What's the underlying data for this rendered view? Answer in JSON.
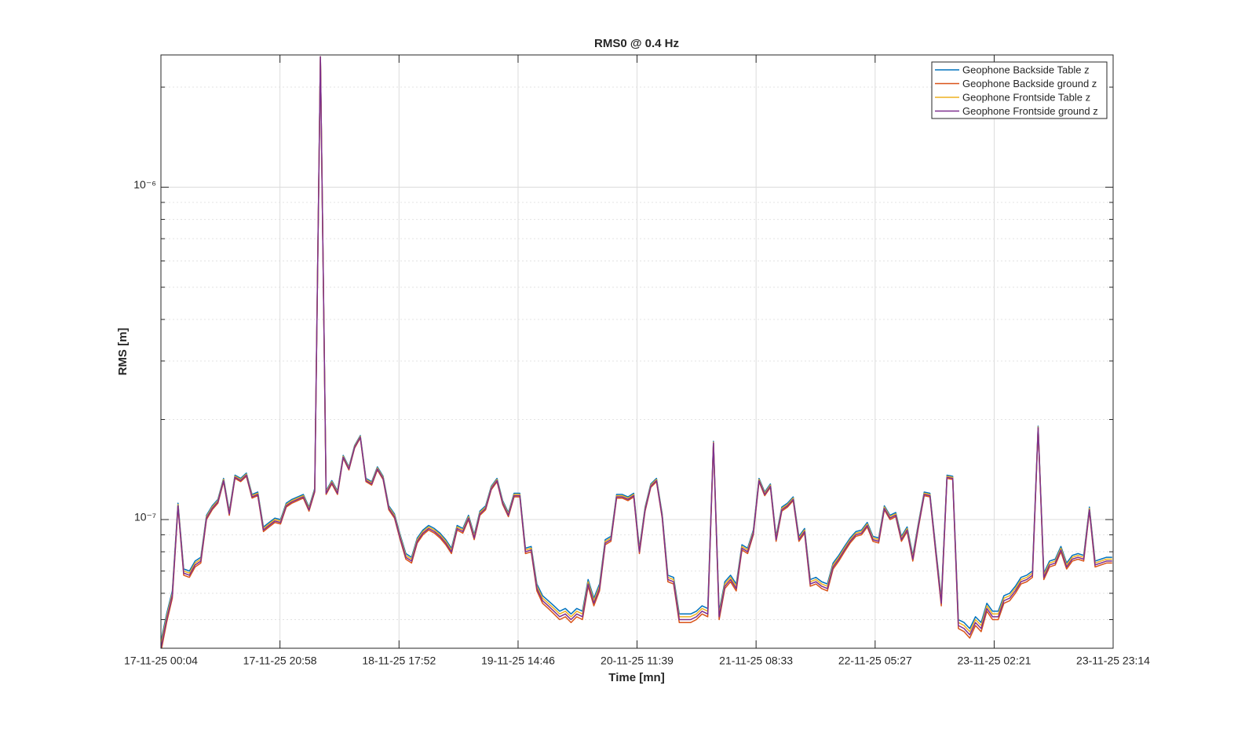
{
  "chart_data": {
    "type": "line",
    "title": "RMS0 @ 0.4 Hz",
    "xlabel": "Time [mn]",
    "ylabel": "RMS [m]",
    "log_y": true,
    "grid": true,
    "legend_position": "top-right",
    "xlim": [
      "17-11-25 00:04",
      "23-11-25 23:14"
    ],
    "xticks": [
      "17-11-25 00:04",
      "17-11-25 20:58",
      "18-11-25 17:52",
      "19-11-25 14:46",
      "20-11-25 11:39",
      "21-11-25 08:33",
      "22-11-25 05:27",
      "23-11-25 02:21",
      "23-11-25 23:14"
    ],
    "ylim": [
      4.1e-08,
      2.5e-06
    ],
    "yticks": [
      {
        "value": 1e-07,
        "label": "10⁻⁷"
      },
      {
        "value": 1e-06,
        "label": "10⁻⁶"
      }
    ],
    "yminorticks": [
      5e-08,
      6e-08,
      7e-08,
      8e-08,
      9e-08,
      2e-07,
      3e-07,
      4e-07,
      5e-07,
      6e-07,
      7e-07,
      8e-07,
      9e-07,
      2e-06
    ],
    "x": [
      "17-11-25 00:04",
      "17-11-25 01:04",
      "17-11-25 02:04",
      "17-11-25 03:04",
      "17-11-25 04:04",
      "17-11-25 05:04",
      "17-11-25 06:04",
      "17-11-25 07:04",
      "17-11-25 08:04",
      "17-11-25 09:04",
      "17-11-25 10:04",
      "17-11-25 11:04",
      "17-11-25 12:04",
      "17-11-25 13:04",
      "17-11-25 14:04",
      "17-11-25 15:04",
      "17-11-25 16:04",
      "17-11-25 17:04",
      "17-11-25 18:04",
      "17-11-25 19:04",
      "17-11-25 20:04",
      "17-11-25 21:04",
      "17-11-25 22:04",
      "17-11-25 23:04",
      "18-11-25 00:04",
      "18-11-25 01:04",
      "18-11-25 02:04",
      "18-11-25 03:04",
      "18-11-25 04:04",
      "18-11-25 05:04",
      "18-11-25 06:04",
      "18-11-25 07:04",
      "18-11-25 08:04",
      "18-11-25 09:04",
      "18-11-25 10:04",
      "18-11-25 11:04",
      "18-11-25 12:04",
      "18-11-25 13:04",
      "18-11-25 14:04",
      "18-11-25 15:04",
      "18-11-25 16:04",
      "18-11-25 17:04",
      "18-11-25 18:04",
      "18-11-25 19:04",
      "18-11-25 20:04",
      "18-11-25 21:04",
      "18-11-25 22:04",
      "18-11-25 23:04",
      "19-11-25 00:04",
      "19-11-25 01:04",
      "19-11-25 02:04",
      "19-11-25 03:04",
      "19-11-25 04:04",
      "19-11-25 05:04",
      "19-11-25 06:04",
      "19-11-25 07:04",
      "19-11-25 08:04",
      "19-11-25 09:04",
      "19-11-25 10:04",
      "19-11-25 11:04",
      "19-11-25 12:04",
      "19-11-25 13:04",
      "19-11-25 14:04",
      "19-11-25 15:04",
      "19-11-25 16:04",
      "19-11-25 17:04",
      "19-11-25 18:04",
      "19-11-25 19:04",
      "19-11-25 20:04",
      "19-11-25 21:04",
      "19-11-25 22:04",
      "19-11-25 23:04",
      "20-11-25 00:04",
      "20-11-25 01:04",
      "20-11-25 02:04",
      "20-11-25 03:04",
      "20-11-25 04:04",
      "20-11-25 05:04",
      "20-11-25 06:04",
      "20-11-25 07:04",
      "20-11-25 08:04",
      "20-11-25 09:04",
      "20-11-25 10:04",
      "20-11-25 11:04",
      "20-11-25 12:04",
      "20-11-25 13:04",
      "20-11-25 14:04",
      "20-11-25 15:04",
      "20-11-25 16:04",
      "20-11-25 17:04",
      "20-11-25 18:04",
      "20-11-25 19:04",
      "20-11-25 20:04",
      "20-11-25 21:04",
      "20-11-25 22:04",
      "20-11-25 23:04",
      "21-11-25 00:04",
      "21-11-25 01:04",
      "21-11-25 02:04",
      "21-11-25 03:04",
      "21-11-25 04:04",
      "21-11-25 05:04",
      "21-11-25 06:04",
      "21-11-25 07:04",
      "21-11-25 08:04",
      "21-11-25 09:04",
      "21-11-25 10:04",
      "21-11-25 11:04",
      "21-11-25 12:04",
      "21-11-25 13:04",
      "21-11-25 14:04",
      "21-11-25 15:04",
      "21-11-25 16:04",
      "21-11-25 17:04",
      "21-11-25 18:04",
      "21-11-25 19:04",
      "21-11-25 20:04",
      "21-11-25 21:04",
      "21-11-25 22:04",
      "21-11-25 23:04",
      "22-11-25 00:04",
      "22-11-25 01:04",
      "22-11-25 02:04",
      "22-11-25 03:04",
      "22-11-25 04:04",
      "22-11-25 05:04",
      "22-11-25 06:04",
      "22-11-25 07:04",
      "22-11-25 08:04",
      "22-11-25 09:04",
      "22-11-25 10:04",
      "22-11-25 11:04",
      "22-11-25 12:04",
      "22-11-25 13:04",
      "22-11-25 14:04",
      "22-11-25 15:04",
      "22-11-25 16:04",
      "22-11-25 17:04",
      "22-11-25 18:04",
      "22-11-25 19:04",
      "22-11-25 20:04",
      "22-11-25 21:04",
      "22-11-25 22:04",
      "22-11-25 23:04",
      "23-11-25 00:04",
      "23-11-25 01:04",
      "23-11-25 02:04",
      "23-11-25 03:04",
      "23-11-25 04:04",
      "23-11-25 05:04",
      "23-11-25 06:04",
      "23-11-25 07:04",
      "23-11-25 08:04",
      "23-11-25 09:04",
      "23-11-25 10:04",
      "23-11-25 11:04",
      "23-11-25 12:04",
      "23-11-25 13:04",
      "23-11-25 14:04",
      "23-11-25 15:04",
      "23-11-25 16:04",
      "23-11-25 17:04",
      "23-11-25 18:04",
      "23-11-25 19:04",
      "23-11-25 20:04",
      "23-11-25 21:04",
      "23-11-25 22:04",
      "23-11-25 23:04"
    ],
    "series": [
      {
        "name": "Geophone Backside Table z",
        "color": "#0072BD",
        "values": [
          4.3e-08,
          5.2e-08,
          6.1e-08,
          1.12e-07,
          7.1e-08,
          7e-08,
          7.5e-08,
          7.7e-08,
          1.03e-07,
          1.1e-07,
          1.15e-07,
          1.33e-07,
          1.06e-07,
          1.36e-07,
          1.33e-07,
          1.38e-07,
          1.19e-07,
          1.21e-07,
          9.5e-08,
          9.8e-08,
          1.01e-07,
          1e-07,
          1.12e-07,
          1.15e-07,
          1.17e-07,
          1.19e-07,
          1.09e-07,
          1.24e-07,
          2.47e-06,
          1.22e-07,
          1.31e-07,
          1.22e-07,
          1.56e-07,
          1.44e-07,
          1.67e-07,
          1.79e-07,
          1.33e-07,
          1.3e-07,
          1.44e-07,
          1.35e-07,
          1.1e-07,
          1.04e-07,
          9e-08,
          7.9e-08,
          7.7e-08,
          8.8e-08,
          9.3e-08,
          9.6e-08,
          9.4e-08,
          9.1e-08,
          8.7e-08,
          8.2e-08,
          9.6e-08,
          9.4e-08,
          1.03e-07,
          9e-08,
          1.06e-07,
          1.1e-07,
          1.26e-07,
          1.33e-07,
          1.14e-07,
          1.05e-07,
          1.2e-07,
          1.2e-07,
          8.2e-08,
          8.3e-08,
          6.4e-08,
          5.9e-08,
          5.7e-08,
          5.5e-08,
          5.3e-08,
          5.4e-08,
          5.2e-08,
          5.4e-08,
          5.3e-08,
          6.6e-08,
          5.8e-08,
          6.4e-08,
          8.7e-08,
          8.9e-08,
          1.19e-07,
          1.19e-07,
          1.17e-07,
          1.2e-07,
          8.2e-08,
          1.09e-07,
          1.28e-07,
          1.33e-07,
          1.04e-07,
          6.8e-08,
          6.7e-08,
          5.2e-08,
          5.2e-08,
          5.2e-08,
          5.3e-08,
          5.5e-08,
          5.4e-08,
          1.72e-07,
          5.3e-08,
          6.5e-08,
          6.8e-08,
          6.4e-08,
          8.4e-08,
          8.2e-08,
          9.3e-08,
          1.33e-07,
          1.21e-07,
          1.28e-07,
          8.9e-08,
          1.09e-07,
          1.12e-07,
          1.17e-07,
          8.9e-08,
          9.4e-08,
          6.6e-08,
          6.7e-08,
          6.5e-08,
          6.4e-08,
          7.4e-08,
          7.8e-08,
          8.3e-08,
          8.8e-08,
          9.2e-08,
          9.3e-08,
          9.8e-08,
          8.9e-08,
          8.8e-08,
          1.1e-07,
          1.03e-07,
          1.05e-07,
          8.9e-08,
          9.5e-08,
          7.8e-08,
          9.8e-08,
          1.21e-07,
          1.2e-07,
          8.3e-08,
          5.8e-08,
          1.36e-07,
          1.35e-07,
          5e-08,
          4.9e-08,
          4.7e-08,
          5.1e-08,
          4.9e-08,
          5.6e-08,
          5.3e-08,
          5.3e-08,
          5.9e-08,
          6e-08,
          6.3e-08,
          6.7e-08,
          6.8e-08,
          7e-08,
          1.91e-07,
          6.9e-08,
          7.5e-08,
          7.6e-08,
          8.3e-08,
          7.4e-08,
          7.8e-08,
          7.9e-08,
          7.8e-08,
          1.09e-07,
          7.5e-08,
          7.6e-08,
          7.7e-08,
          7.7e-08
        ]
      },
      {
        "name": "Geophone Backside ground z",
        "color": "#D95319",
        "values": [
          4e-08,
          4.9e-08,
          5.8e-08,
          1.09e-07,
          6.8e-08,
          6.7e-08,
          7.2e-08,
          7.4e-08,
          1e-07,
          1.07e-07,
          1.12e-07,
          1.3e-07,
          1.03e-07,
          1.33e-07,
          1.3e-07,
          1.35e-07,
          1.16e-07,
          1.18e-07,
          9.2e-08,
          9.5e-08,
          9.8e-08,
          9.7e-08,
          1.09e-07,
          1.12e-07,
          1.14e-07,
          1.16e-07,
          1.06e-07,
          1.21e-07,
          2.47e-06,
          1.19e-07,
          1.28e-07,
          1.19e-07,
          1.53e-07,
          1.41e-07,
          1.64e-07,
          1.76e-07,
          1.3e-07,
          1.27e-07,
          1.41e-07,
          1.32e-07,
          1.07e-07,
          1.01e-07,
          8.7e-08,
          7.6e-08,
          7.4e-08,
          8.5e-08,
          9e-08,
          9.3e-08,
          9.1e-08,
          8.8e-08,
          8.4e-08,
          7.9e-08,
          9.3e-08,
          9.1e-08,
          1e-07,
          8.7e-08,
          1.03e-07,
          1.07e-07,
          1.23e-07,
          1.3e-07,
          1.11e-07,
          1.02e-07,
          1.17e-07,
          1.17e-07,
          7.9e-08,
          8e-08,
          6.1e-08,
          5.6e-08,
          5.4e-08,
          5.2e-08,
          5e-08,
          5.1e-08,
          4.9e-08,
          5.1e-08,
          5e-08,
          6.3e-08,
          5.5e-08,
          6.1e-08,
          8.4e-08,
          8.6e-08,
          1.16e-07,
          1.16e-07,
          1.14e-07,
          1.17e-07,
          7.9e-08,
          1.06e-07,
          1.25e-07,
          1.3e-07,
          1.01e-07,
          6.5e-08,
          6.4e-08,
          4.9e-08,
          4.9e-08,
          4.9e-08,
          5e-08,
          5.2e-08,
          5.1e-08,
          1.69e-07,
          5e-08,
          6.2e-08,
          6.5e-08,
          6.1e-08,
          8.1e-08,
          7.9e-08,
          9e-08,
          1.3e-07,
          1.18e-07,
          1.25e-07,
          8.6e-08,
          1.06e-07,
          1.09e-07,
          1.14e-07,
          8.6e-08,
          9.1e-08,
          6.3e-08,
          6.4e-08,
          6.2e-08,
          6.1e-08,
          7.1e-08,
          7.5e-08,
          8e-08,
          8.5e-08,
          8.9e-08,
          9e-08,
          9.5e-08,
          8.6e-08,
          8.5e-08,
          1.07e-07,
          1e-07,
          1.02e-07,
          8.6e-08,
          9.2e-08,
          7.5e-08,
          9.5e-08,
          1.18e-07,
          1.17e-07,
          8e-08,
          5.5e-08,
          1.33e-07,
          1.32e-07,
          4.7e-08,
          4.6e-08,
          4.4e-08,
          4.8e-08,
          4.6e-08,
          5.3e-08,
          5e-08,
          5e-08,
          5.6e-08,
          5.7e-08,
          6e-08,
          6.4e-08,
          6.5e-08,
          6.7e-08,
          1.88e-07,
          6.6e-08,
          7.2e-08,
          7.3e-08,
          8e-08,
          7.1e-08,
          7.5e-08,
          7.6e-08,
          7.5e-08,
          1.06e-07,
          7.2e-08,
          7.3e-08,
          7.4e-08,
          7.4e-08
        ]
      },
      {
        "name": "Geophone Frontside Table z",
        "color": "#EDB120",
        "values": [
          4.2e-08,
          5.1e-08,
          6e-08,
          1.11e-07,
          7e-08,
          6.9e-08,
          7.4e-08,
          7.6e-08,
          1.02e-07,
          1.09e-07,
          1.14e-07,
          1.32e-07,
          1.05e-07,
          1.35e-07,
          1.32e-07,
          1.37e-07,
          1.18e-07,
          1.2e-07,
          9.4e-08,
          9.7e-08,
          1e-07,
          9.9e-08,
          1.11e-07,
          1.14e-07,
          1.16e-07,
          1.18e-07,
          1.08e-07,
          1.23e-07,
          2.47e-06,
          1.21e-07,
          1.3e-07,
          1.21e-07,
          1.55e-07,
          1.43e-07,
          1.66e-07,
          1.78e-07,
          1.32e-07,
          1.29e-07,
          1.43e-07,
          1.34e-07,
          1.09e-07,
          1.03e-07,
          8.9e-08,
          7.8e-08,
          7.6e-08,
          8.7e-08,
          9.2e-08,
          9.5e-08,
          9.3e-08,
          9e-08,
          8.6e-08,
          8.1e-08,
          9.5e-08,
          9.3e-08,
          1.02e-07,
          8.9e-08,
          1.05e-07,
          1.09e-07,
          1.25e-07,
          1.32e-07,
          1.13e-07,
          1.04e-07,
          1.19e-07,
          1.19e-07,
          8.1e-08,
          8.2e-08,
          6.3e-08,
          5.8e-08,
          5.6e-08,
          5.4e-08,
          5.2e-08,
          5.3e-08,
          5.1e-08,
          5.3e-08,
          5.2e-08,
          6.5e-08,
          5.7e-08,
          6.3e-08,
          8.6e-08,
          8.8e-08,
          1.18e-07,
          1.18e-07,
          1.16e-07,
          1.19e-07,
          8.1e-08,
          1.08e-07,
          1.27e-07,
          1.32e-07,
          1.03e-07,
          6.7e-08,
          6.6e-08,
          5.1e-08,
          5.1e-08,
          5.1e-08,
          5.2e-08,
          5.4e-08,
          5.3e-08,
          1.71e-07,
          5.2e-08,
          6.4e-08,
          6.7e-08,
          6.3e-08,
          8.3e-08,
          8.1e-08,
          9.2e-08,
          1.32e-07,
          1.2e-07,
          1.27e-07,
          8.8e-08,
          1.08e-07,
          1.11e-07,
          1.16e-07,
          8.8e-08,
          9.3e-08,
          6.5e-08,
          6.6e-08,
          6.4e-08,
          6.3e-08,
          7.3e-08,
          7.7e-08,
          8.2e-08,
          8.7e-08,
          9.1e-08,
          9.2e-08,
          9.7e-08,
          8.8e-08,
          8.7e-08,
          1.09e-07,
          1.02e-07,
          1.04e-07,
          8.8e-08,
          9.4e-08,
          7.7e-08,
          9.7e-08,
          1.2e-07,
          1.19e-07,
          8.2e-08,
          5.7e-08,
          1.35e-07,
          1.34e-07,
          4.9e-08,
          4.8e-08,
          4.6e-08,
          5e-08,
          4.8e-08,
          5.5e-08,
          5.2e-08,
          5.2e-08,
          5.8e-08,
          5.9e-08,
          6.2e-08,
          6.6e-08,
          6.7e-08,
          6.9e-08,
          1.9e-07,
          6.8e-08,
          7.4e-08,
          7.5e-08,
          8.2e-08,
          7.3e-08,
          7.7e-08,
          7.8e-08,
          7.7e-08,
          1.08e-07,
          7.4e-08,
          7.5e-08,
          7.6e-08,
          7.6e-08
        ]
      },
      {
        "name": "Geophone Frontside ground z",
        "color": "#7E2F8E",
        "values": [
          4.1e-08,
          5e-08,
          5.9e-08,
          1.1e-07,
          6.9e-08,
          6.8e-08,
          7.3e-08,
          7.5e-08,
          1.01e-07,
          1.08e-07,
          1.13e-07,
          1.31e-07,
          1.04e-07,
          1.34e-07,
          1.31e-07,
          1.36e-07,
          1.17e-07,
          1.19e-07,
          9.3e-08,
          9.6e-08,
          9.9e-08,
          9.8e-08,
          1.1e-07,
          1.13e-07,
          1.15e-07,
          1.17e-07,
          1.07e-07,
          1.22e-07,
          2.47e-06,
          1.2e-07,
          1.29e-07,
          1.2e-07,
          1.54e-07,
          1.42e-07,
          1.65e-07,
          1.77e-07,
          1.31e-07,
          1.28e-07,
          1.42e-07,
          1.33e-07,
          1.08e-07,
          1.02e-07,
          8.8e-08,
          7.7e-08,
          7.5e-08,
          8.6e-08,
          9.1e-08,
          9.4e-08,
          9.2e-08,
          8.9e-08,
          8.5e-08,
          8e-08,
          9.4e-08,
          9.2e-08,
          1.01e-07,
          8.8e-08,
          1.04e-07,
          1.08e-07,
          1.24e-07,
          1.31e-07,
          1.12e-07,
          1.03e-07,
          1.18e-07,
          1.18e-07,
          8e-08,
          8.1e-08,
          6.2e-08,
          5.7e-08,
          5.5e-08,
          5.3e-08,
          5.1e-08,
          5.2e-08,
          5e-08,
          5.2e-08,
          5.1e-08,
          6.4e-08,
          5.6e-08,
          6.2e-08,
          8.5e-08,
          8.7e-08,
          1.17e-07,
          1.17e-07,
          1.15e-07,
          1.18e-07,
          8e-08,
          1.07e-07,
          1.26e-07,
          1.31e-07,
          1.02e-07,
          6.6e-08,
          6.5e-08,
          5e-08,
          5e-08,
          5e-08,
          5.1e-08,
          5.3e-08,
          5.2e-08,
          1.7e-07,
          5.1e-08,
          6.3e-08,
          6.6e-08,
          6.2e-08,
          8.2e-08,
          8e-08,
          9.1e-08,
          1.31e-07,
          1.19e-07,
          1.26e-07,
          8.7e-08,
          1.07e-07,
          1.1e-07,
          1.15e-07,
          8.7e-08,
          9.2e-08,
          6.4e-08,
          6.5e-08,
          6.3e-08,
          6.2e-08,
          7.2e-08,
          7.6e-08,
          8.1e-08,
          8.6e-08,
          9e-08,
          9.1e-08,
          9.6e-08,
          8.7e-08,
          8.6e-08,
          1.08e-07,
          1.01e-07,
          1.03e-07,
          8.7e-08,
          9.3e-08,
          7.6e-08,
          9.6e-08,
          1.19e-07,
          1.18e-07,
          8.1e-08,
          5.6e-08,
          1.34e-07,
          1.33e-07,
          4.8e-08,
          4.7e-08,
          4.5e-08,
          4.9e-08,
          4.7e-08,
          5.4e-08,
          5.1e-08,
          5.1e-08,
          5.7e-08,
          5.8e-08,
          6.1e-08,
          6.5e-08,
          6.6e-08,
          6.8e-08,
          1.89e-07,
          6.7e-08,
          7.3e-08,
          7.4e-08,
          8.1e-08,
          7.2e-08,
          7.6e-08,
          7.7e-08,
          7.6e-08,
          1.07e-07,
          7.3e-08,
          7.4e-08,
          7.5e-08,
          7.5e-08
        ]
      }
    ]
  }
}
